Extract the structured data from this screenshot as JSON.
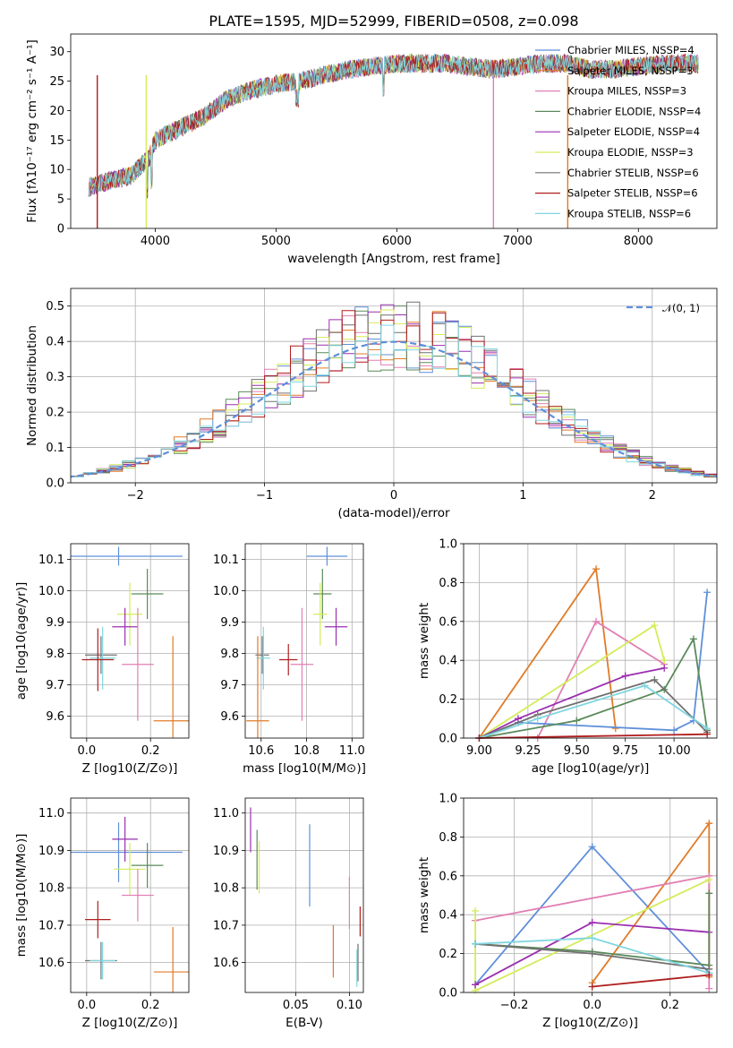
{
  "colors": {
    "blue": "#5f8fd9",
    "orange": "#e07b28",
    "pink": "#e27fb4",
    "green": "#5a8a5a",
    "purple": "#9a2fb0",
    "yellow": "#d4ec5a",
    "gray": "#707070",
    "red": "#b01e1e",
    "cyan": "#7fd6e0",
    "normal": "#5f8fd9"
  },
  "title": "PLATE=1595, MJD=52999, FIBERID=0508, z=0.098",
  "legend": [
    "Chabrier MILES, NSSP=4",
    "Salpeter MILES, NSSP=3",
    "Kroupa MILES, NSSP=3",
    "Chabrier ELODIE, NSSP=4",
    "Salpeter ELODIE, NSSP=4",
    "Kroupa ELODIE, NSSP=3",
    "Chabrier STELIB, NSSP=6",
    "Salpeter STELIB, NSSP=6",
    "Kroupa STELIB, NSSP=6"
  ],
  "chart_data": [
    {
      "type": "line",
      "title": "PLATE=1595, MJD=52999, FIBERID=0508, z=0.098",
      "xlabel": "wavelength [Angstrom, rest frame]",
      "ylabel": "Flux [fλ10⁻¹⁷ erg cm⁻² s⁻¹ A⁻¹]",
      "xlim": [
        3300,
        8650
      ],
      "ylim": [
        0,
        33
      ],
      "xticks": [
        "4000",
        "5000",
        "6000",
        "7000",
        "8000"
      ],
      "yticks": [
        "0",
        "5",
        "10",
        "15",
        "20",
        "25",
        "30"
      ],
      "continuum": [
        [
          3450,
          7
        ],
        [
          3600,
          8
        ],
        [
          3800,
          9
        ],
        [
          3950,
          12
        ],
        [
          4000,
          15
        ],
        [
          4200,
          17
        ],
        [
          4400,
          19
        ],
        [
          4600,
          22
        ],
        [
          4800,
          23.5
        ],
        [
          5000,
          24.5
        ],
        [
          5200,
          25
        ],
        [
          5400,
          26
        ],
        [
          5600,
          27
        ],
        [
          5800,
          27.5
        ],
        [
          6000,
          28
        ],
        [
          6200,
          28
        ],
        [
          6400,
          28
        ],
        [
          6600,
          27.5
        ],
        [
          6800,
          27
        ],
        [
          7000,
          27.5
        ],
        [
          7200,
          28
        ],
        [
          7400,
          28
        ],
        [
          7600,
          27
        ],
        [
          7800,
          27
        ],
        [
          8000,
          27.5
        ],
        [
          8300,
          28
        ],
        [
          8500,
          28
        ]
      ],
      "series_colors": [
        "blue",
        "orange",
        "pink",
        "green",
        "purple",
        "yellow",
        "gray",
        "red",
        "cyan"
      ]
    },
    {
      "type": "histogram",
      "xlabel": "(data-model)/error",
      "ylabel": "Normed distribution",
      "xlim": [
        -2.5,
        2.5
      ],
      "ylim": [
        0,
        0.55
      ],
      "xticks": [
        "−2",
        "−1",
        "0",
        "1",
        "2"
      ],
      "yticks": [
        "0.0",
        "0.1",
        "0.2",
        "0.3",
        "0.4",
        "0.5"
      ],
      "legend": "𝒩(0, 1)",
      "normal_mean": 0,
      "normal_sd": 1
    },
    {
      "type": "scatter_errorbar",
      "xlabel": "Z [log10(Z/Z⊙)]",
      "ylabel": "age  [log10(age/yr)]",
      "xlim": [
        -0.05,
        0.32
      ],
      "ylim": [
        9.53,
        10.15
      ],
      "xticks": [
        "0.0",
        "0.2"
      ],
      "yticks": [
        "9.6",
        "9.7",
        "9.8",
        "9.9",
        "10.0",
        "10.1"
      ],
      "points": [
        {
          "c": "blue",
          "x": 0.1,
          "y": 10.11,
          "xe": 0.2,
          "ye": 0.03
        },
        {
          "c": "green",
          "x": 0.19,
          "y": 9.99,
          "xe": 0.05,
          "ye": 0.08
        },
        {
          "c": "yellow",
          "x": 0.135,
          "y": 9.925,
          "xe": 0.04,
          "ye": 0.1
        },
        {
          "c": "purple",
          "x": 0.12,
          "y": 9.885,
          "xe": 0.04,
          "ye": 0.06
        },
        {
          "c": "gray",
          "x": 0.045,
          "y": 9.795,
          "xe": 0.05,
          "ye": 0.06
        },
        {
          "c": "cyan",
          "x": 0.05,
          "y": 9.785,
          "xe": 0.04,
          "ye": 0.1
        },
        {
          "c": "red",
          "x": 0.035,
          "y": 9.78,
          "xe": 0.05,
          "ye": 0.1
        },
        {
          "c": "pink",
          "x": 0.16,
          "y": 9.765,
          "xe": 0.05,
          "ye": 0.18
        },
        {
          "c": "orange",
          "x": 0.27,
          "y": 9.585,
          "xe": 0.06,
          "ye": 0.27
        }
      ]
    },
    {
      "type": "scatter_errorbar",
      "xlabel": "mass [log10(M/M⊙)]",
      "ylabel": "",
      "xlim": [
        10.53,
        11.05
      ],
      "ylim": [
        9.53,
        10.15
      ],
      "xticks": [
        "10.6",
        "10.8",
        "11.0"
      ],
      "yticks": [
        "9.6",
        "9.7",
        "9.8",
        "9.9",
        "10.0",
        "10.1"
      ],
      "points": [
        {
          "c": "blue",
          "x": 10.89,
          "y": 10.11,
          "xe": 0.09,
          "ye": 0.03
        },
        {
          "c": "green",
          "x": 10.87,
          "y": 9.99,
          "xe": 0.04,
          "ye": 0.08
        },
        {
          "c": "yellow",
          "x": 10.86,
          "y": 9.925,
          "xe": 0.03,
          "ye": 0.1
        },
        {
          "c": "purple",
          "x": 10.93,
          "y": 9.885,
          "xe": 0.05,
          "ye": 0.06
        },
        {
          "c": "gray",
          "x": 10.605,
          "y": 9.795,
          "xe": 0.03,
          "ye": 0.06
        },
        {
          "c": "cyan",
          "x": 10.61,
          "y": 9.785,
          "xe": 0.03,
          "ye": 0.1
        },
        {
          "c": "red",
          "x": 10.72,
          "y": 9.78,
          "xe": 0.04,
          "ye": 0.05
        },
        {
          "c": "pink",
          "x": 10.78,
          "y": 9.765,
          "xe": 0.05,
          "ye": 0.18
        },
        {
          "c": "orange",
          "x": 10.585,
          "y": 9.585,
          "xe": 0.05,
          "ye": 0.27
        }
      ]
    },
    {
      "type": "line",
      "xlabel": "age  [log10(age/yr)]",
      "ylabel": "mass weight",
      "xlim": [
        8.92,
        10.22
      ],
      "ylim": [
        0,
        1.0
      ],
      "xticks": [
        "9.00",
        "9.25",
        "9.50",
        "9.75",
        "10.00"
      ],
      "yticks": [
        "0.0",
        "0.2",
        "0.4",
        "0.6",
        "0.8",
        "1.0"
      ],
      "series": [
        {
          "c": "orange",
          "pts": [
            [
              9.0,
              0
            ],
            [
              9.6,
              0.87
            ],
            [
              9.7,
              0.05
            ]
          ]
        },
        {
          "c": "pink",
          "pts": [
            [
              9.3,
              0
            ],
            [
              9.6,
              0.6
            ],
            [
              9.95,
              0.38
            ]
          ]
        },
        {
          "c": "yellow",
          "pts": [
            [
              9.0,
              0
            ],
            [
              9.9,
              0.58
            ],
            [
              9.95,
              0.4
            ]
          ]
        },
        {
          "c": "blue",
          "pts": [
            [
              9.0,
              0
            ],
            [
              9.2,
              0.08
            ],
            [
              10.0,
              0.04
            ],
            [
              10.1,
              0.09
            ],
            [
              10.17,
              0.75
            ]
          ]
        },
        {
          "c": "green",
          "pts": [
            [
              9.0,
              0
            ],
            [
              9.5,
              0.09
            ],
            [
              9.95,
              0.25
            ],
            [
              10.1,
              0.51
            ],
            [
              10.17,
              0.04
            ]
          ]
        },
        {
          "c": "purple",
          "pts": [
            [
              9.0,
              0
            ],
            [
              9.2,
              0.1
            ],
            [
              9.75,
              0.32
            ],
            [
              9.95,
              0.36
            ]
          ]
        },
        {
          "c": "gray",
          "pts": [
            [
              9.0,
              0
            ],
            [
              9.3,
              0.12
            ],
            [
              9.9,
              0.3
            ],
            [
              10.17,
              0.03
            ]
          ]
        },
        {
          "c": "cyan",
          "pts": [
            [
              9.0,
              0
            ],
            [
              9.3,
              0.1
            ],
            [
              9.85,
              0.27
            ],
            [
              10.17,
              0.05
            ]
          ]
        },
        {
          "c": "red",
          "pts": [
            [
              9.0,
              0
            ],
            [
              10.17,
              0.02
            ]
          ]
        }
      ]
    },
    {
      "type": "scatter_errorbar",
      "xlabel": "Z [log10(Z/Z⊙)]",
      "ylabel": "mass [log10(M/M⊙)]",
      "xlim": [
        -0.05,
        0.32
      ],
      "ylim": [
        10.52,
        11.04
      ],
      "xticks": [
        "0.0",
        "0.2"
      ],
      "yticks": [
        "10.6",
        "10.7",
        "10.8",
        "10.9",
        "11.0"
      ],
      "points": [
        {
          "c": "blue",
          "x": 0.1,
          "y": 10.895,
          "xe": 0.2,
          "ye": 0.08
        },
        {
          "c": "purple",
          "x": 0.12,
          "y": 10.93,
          "xe": 0.04,
          "ye": 0.06
        },
        {
          "c": "green",
          "x": 0.19,
          "y": 10.86,
          "xe": 0.05,
          "ye": 0.06
        },
        {
          "c": "yellow",
          "x": 0.135,
          "y": 10.85,
          "xe": 0.05,
          "ye": 0.07
        },
        {
          "c": "pink",
          "x": 0.16,
          "y": 10.78,
          "xe": 0.05,
          "ye": 0.07
        },
        {
          "c": "red",
          "x": 0.035,
          "y": 10.715,
          "xe": 0.04,
          "ye": 0.05
        },
        {
          "c": "gray",
          "x": 0.045,
          "y": 10.605,
          "xe": 0.05,
          "ye": 0.05
        },
        {
          "c": "cyan",
          "x": 0.05,
          "y": 10.605,
          "xe": 0.04,
          "ye": 0.05
        },
        {
          "c": "orange",
          "x": 0.27,
          "y": 10.575,
          "xe": 0.06,
          "ye": 0.12
        }
      ]
    },
    {
      "type": "scatter_errorbar",
      "xlabel": "E(B-V)",
      "ylabel": "",
      "xlim": [
        0.003,
        0.113
      ],
      "ylim": [
        10.52,
        11.04
      ],
      "xticks": [
        "0.05",
        "0.10"
      ],
      "yticks": [
        "10.6",
        "10.7",
        "10.8",
        "10.9",
        "11.0"
      ],
      "points": [
        {
          "c": "purple",
          "x": 0.008,
          "y": 10.955,
          "xe": 0,
          "ye": 0.06
        },
        {
          "c": "green",
          "x": 0.014,
          "y": 10.875,
          "xe": 0,
          "ye": 0.08
        },
        {
          "c": "yellow",
          "x": 0.016,
          "y": 10.855,
          "xe": 0,
          "ye": 0.07
        },
        {
          "c": "blue",
          "x": 0.063,
          "y": 10.86,
          "xe": 0,
          "ye": 0.11
        },
        {
          "c": "pink",
          "x": 0.1,
          "y": 10.76,
          "xe": 0,
          "ye": 0.07
        },
        {
          "c": "orange",
          "x": 0.085,
          "y": 10.63,
          "xe": 0,
          "ye": 0.07
        },
        {
          "c": "red",
          "x": 0.11,
          "y": 10.71,
          "xe": 0,
          "ye": 0.04
        },
        {
          "c": "gray",
          "x": 0.108,
          "y": 10.6,
          "xe": 0,
          "ye": 0.05
        },
        {
          "c": "cyan",
          "x": 0.107,
          "y": 10.585,
          "xe": 0,
          "ye": 0.05
        }
      ]
    },
    {
      "type": "line",
      "xlabel": "Z [log10(Z/Z⊙)]",
      "ylabel": "mass weight",
      "xlim": [
        -0.33,
        0.32
      ],
      "ylim": [
        0,
        1.0
      ],
      "xticks": [
        "−0.2",
        "0.0",
        "0.2"
      ],
      "yticks": [
        "0.0",
        "0.2",
        "0.4",
        "0.6",
        "0.8",
        "1.0"
      ],
      "series": [
        {
          "c": "blue",
          "pts": [
            [
              -0.3,
              0.04
            ],
            [
              0.0,
              0.75
            ],
            [
              0.3,
              0.1
            ]
          ]
        },
        {
          "c": "orange",
          "pts": [
            [
              0.0,
              0.05
            ],
            [
              0.3,
              0.87
            ],
            [
              0.3,
              0.08
            ]
          ]
        },
        {
          "c": "pink",
          "pts": [
            [
              -0.3,
              0.37
            ],
            [
              0.3,
              0.6
            ],
            [
              0.3,
              0.02
            ]
          ]
        },
        {
          "c": "yellow",
          "pts": [
            [
              -0.3,
              0.42
            ],
            [
              -0.3,
              0.01
            ],
            [
              0.3,
              0.58
            ]
          ]
        },
        {
          "c": "purple",
          "pts": [
            [
              -0.3,
              0.04
            ],
            [
              0.0,
              0.36
            ],
            [
              0.3,
              0.31
            ]
          ]
        },
        {
          "c": "green",
          "pts": [
            [
              -0.3,
              0.25
            ],
            [
              0.0,
              0.21
            ],
            [
              0.3,
              0.14
            ],
            [
              0.3,
              0.51
            ]
          ]
        },
        {
          "c": "gray",
          "pts": [
            [
              -0.3,
              0.25
            ],
            [
              0.0,
              0.2
            ],
            [
              0.3,
              0.12
            ]
          ]
        },
        {
          "c": "cyan",
          "pts": [
            [
              -0.3,
              0.25
            ],
            [
              0.0,
              0.28
            ],
            [
              0.3,
              0.1
            ]
          ]
        },
        {
          "c": "red",
          "pts": [
            [
              0.0,
              0.03
            ],
            [
              0.3,
              0.09
            ]
          ]
        }
      ]
    }
  ]
}
